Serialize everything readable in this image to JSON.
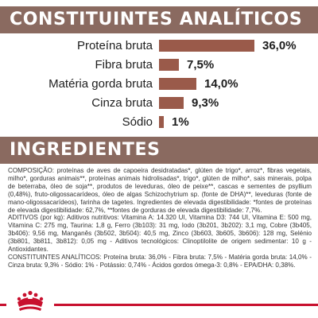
{
  "analytics": {
    "title": "CONSTITUINTES ANALÍTICOS",
    "rows": [
      {
        "label": "Proteína bruta",
        "value_text": "36,0%",
        "value": 36.0
      },
      {
        "label": "Fibra bruta",
        "value_text": "7,5%",
        "value": 7.5
      },
      {
        "label": "Matéria gorda bruta",
        "value_text": "14,0%",
        "value": 14.0
      },
      {
        "label": "Cinza bruta",
        "value_text": "9,3%",
        "value": 9.3
      },
      {
        "label": "Sódio",
        "value_text": "1%",
        "value": 1.0
      }
    ]
  },
  "chart_data": {
    "type": "bar",
    "title": "CONSTITUINTES ANALÍTICOS",
    "categories": [
      "Proteína bruta",
      "Fibra bruta",
      "Matéria gorda bruta",
      "Cinza bruta",
      "Sódio"
    ],
    "values": [
      36.0,
      7.5,
      14.0,
      9.3,
      1.0
    ],
    "value_labels": [
      "36,0%",
      "7,5%",
      "14,0%",
      "9,3%",
      "1%"
    ],
    "bar_color": "#9a5a4a"
  },
  "ingredients": {
    "title": "INGREDIENTES",
    "paragraphs": [
      "COMPOSIÇÃO: proteínas de aves de capoeira desidratadas*, glúten de trigo*, arroz*, fibras vegetais, milho*, gorduras animais**, proteínas animais hidrolisadas*, trigo*, glúten de milho*, sais minerais, polpa de beterraba, óleo de soja**, produtos de leveduras, óleo de peixe**, cascas e sementes de psyllium (0,48%), fruto-oligossacarídeos, óleo de algas Schizochytrium sp. (fonte de DHA)**, leveduras (fonte de mano-oligossacarídeos), farinha de tagetes. Ingredientes de elevada digestibilidade: *fontes de proteínas de elevada digestibilidade: 62,7%, **fontes de gorduras de elevada digestibilidade: 7,7%.",
      "ADITIVOS (por kg): Aditivos nutritivos: Vitamina A: 14.320 UI, Vitamina D3: 744 UI, Vitamina E: 500 mg, Vitamina C: 275 mg, Taurina: 1,8 g, Ferro (3b103): 31 mg, Iodo (3b201, 3b202): 3,1 mg, Cobre (3b405, 3b406): 9,56 mg, Manganês (3b502, 3b504): 40,5 mg, Zinco (3b603, 3b605, 3b606): 128 mg, Selénio (3b801, 3b811, 3b812): 0,05 mg - Aditivos tecnológicos: Clinoptilolite de origem sedimentar: 10 g - Antioxidantes.",
      "CONSTITUINTES ANALÍTICOS: Proteína bruta: 36,0% - Fibra bruta: 7,5% - Matéria gorda bruta: 14,0% - Cinza bruta: 9,3% - Sódio: 1% - Potássio: 0,74% - Ácidos gordos ómega-3: 0,8% - EPA/DHA: 0,38%."
    ]
  },
  "brand": {
    "logo_icon": "royal-canin-crown-icon",
    "accent_color": "#c8102e"
  },
  "colors": {
    "header_bg": "#8a6a60",
    "bar": "#9a5a4a",
    "text": "#1d1d1d"
  }
}
